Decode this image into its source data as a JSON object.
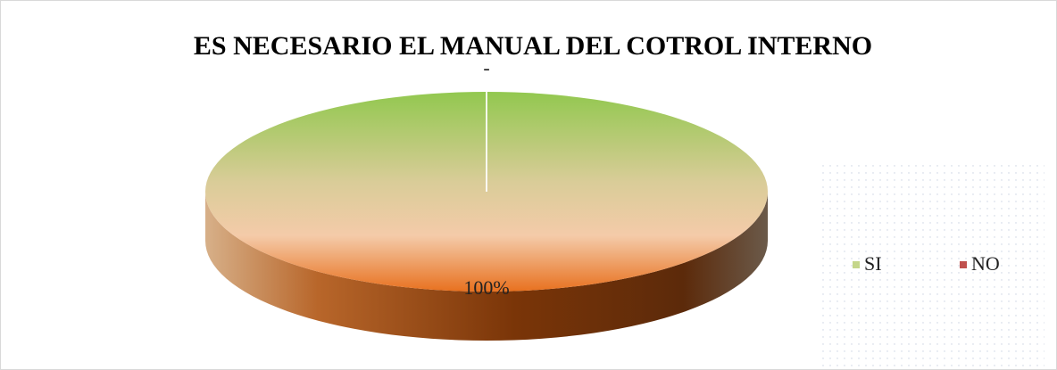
{
  "chart_data": {
    "type": "pie",
    "title": "ES NECESARIO EL MANUAL DEL COTROL INTERNO",
    "categories": [
      "SI",
      "NO"
    ],
    "values": [
      100,
      0
    ],
    "value_labels": [
      "100%",
      "-"
    ],
    "colors": [
      "#c5d68a",
      "#c0504d"
    ],
    "legend": "right"
  }
}
